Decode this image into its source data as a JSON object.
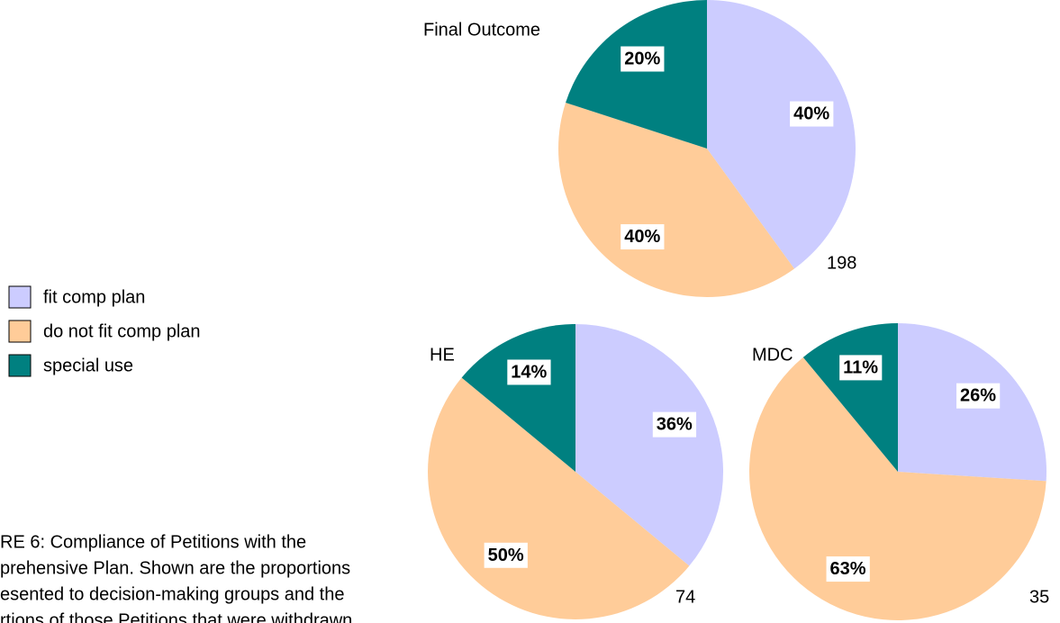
{
  "chart_data": [
    {
      "type": "pie",
      "title": "Final Outcome",
      "categories": [
        "fit comp plan",
        "do not fit comp plan",
        "special use"
      ],
      "values": [
        40,
        40,
        20
      ],
      "value_labels": [
        "40%",
        "40%",
        "20%"
      ],
      "colors": [
        "#ccccff",
        "#ffcc99",
        "#008080"
      ],
      "total": 198
    },
    {
      "type": "pie",
      "title": "HE",
      "categories": [
        "fit comp plan",
        "do not fit comp plan",
        "special use"
      ],
      "values": [
        36,
        50,
        14
      ],
      "value_labels": [
        "36%",
        "50%",
        "14%"
      ],
      "colors": [
        "#ccccff",
        "#ffcc99",
        "#008080"
      ],
      "total": 74
    },
    {
      "type": "pie",
      "title": "MDC",
      "categories": [
        "fit comp plan",
        "do not fit comp plan",
        "special use"
      ],
      "values": [
        26,
        63,
        11
      ],
      "value_labels": [
        "26%",
        "63%",
        "11%"
      ],
      "colors": [
        "#ccccff",
        "#ffcc99",
        "#008080"
      ],
      "total": 35
    }
  ],
  "caption": [
    "RE 6: Compliance of Petitions with the",
    "prehensive Plan.  Shown are the proportions",
    "esented to decision-making groups and the",
    "rtions of those Petitions that were withdrawn"
  ]
}
